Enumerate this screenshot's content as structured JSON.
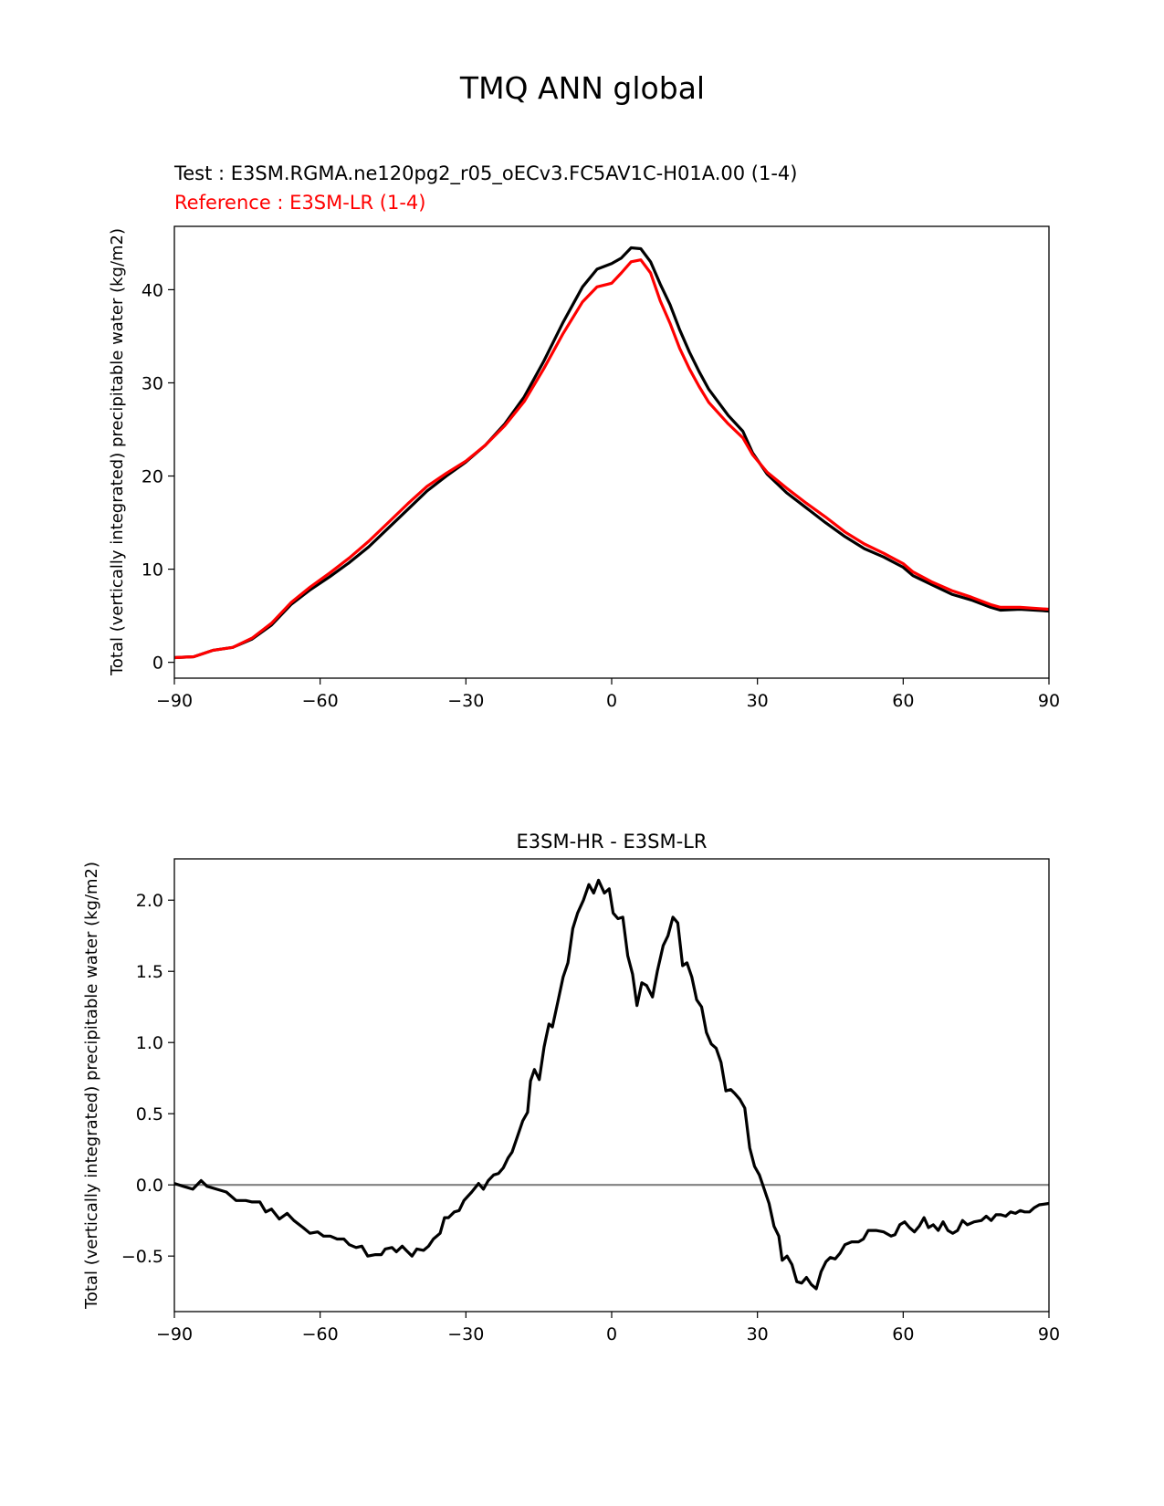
{
  "figure_title": "TMQ ANN global",
  "colors": {
    "test": "#000000",
    "reference": "#ff0000",
    "diff": "#000000",
    "zero_line": "#808080"
  },
  "chart_data": [
    {
      "type": "line",
      "test_label": "Test : E3SM.RGMA.ne120pg2_r05_oECv3.FC5AV1C-H01A.00 (1-4)",
      "reference_label": "Reference : E3SM-LR (1-4)",
      "xlabel": "",
      "ylabel": "Total (vertically integrated) precipitable water (kg/m2)",
      "xlim": [
        -90,
        90
      ],
      "ylim": [
        -1.7,
        46.8
      ],
      "xticks": [
        -90,
        -60,
        -30,
        0,
        30,
        60,
        90
      ],
      "xtick_labels": [
        "−90",
        "−60",
        "−30",
        "0",
        "30",
        "60",
        "90"
      ],
      "yticks": [
        0,
        10,
        20,
        30,
        40
      ],
      "ytick_labels": [
        "0",
        "10",
        "20",
        "30",
        "40"
      ],
      "series": [
        {
          "name": "test",
          "x": [
            -90,
            -86,
            -82,
            -78,
            -74,
            -70,
            -66,
            -62,
            -58,
            -54,
            -50,
            -46,
            -42,
            -38,
            -34,
            -30,
            -26,
            -22,
            -18,
            -14,
            -10,
            -6,
            -3,
            0,
            2,
            4,
            6,
            8,
            10,
            12,
            14,
            16,
            18,
            20,
            24,
            27,
            29,
            32,
            36,
            40,
            44,
            48,
            52,
            56,
            60,
            62,
            66,
            70,
            74,
            78,
            80,
            84,
            90
          ],
          "y": [
            0.5,
            0.6,
            1.3,
            1.6,
            2.5,
            4.0,
            6.2,
            7.8,
            9.2,
            10.7,
            12.4,
            14.4,
            16.4,
            18.4,
            20.0,
            21.5,
            23.3,
            25.6,
            28.5,
            32.3,
            36.5,
            40.3,
            42.2,
            42.8,
            43.4,
            44.5,
            44.4,
            43.0,
            40.6,
            38.4,
            35.7,
            33.3,
            31.2,
            29.3,
            26.5,
            24.8,
            22.5,
            20.2,
            18.2,
            16.6,
            15.0,
            13.5,
            12.2,
            11.3,
            10.2,
            9.3,
            8.3,
            7.3,
            6.7,
            5.9,
            5.6,
            5.7,
            5.5
          ]
        },
        {
          "name": "reference",
          "x": [
            -90,
            -86,
            -82,
            -78,
            -74,
            -70,
            -66,
            -62,
            -58,
            -54,
            -50,
            -46,
            -42,
            -38,
            -34,
            -30,
            -26,
            -22,
            -18,
            -14,
            -10,
            -6,
            -3,
            0,
            2,
            4,
            6,
            8,
            10,
            12,
            14,
            16,
            18,
            20,
            24,
            27,
            29,
            32,
            36,
            40,
            44,
            48,
            52,
            56,
            60,
            62,
            66,
            70,
            74,
            78,
            80,
            84,
            90
          ],
          "y": [
            0.5,
            0.6,
            1.3,
            1.6,
            2.6,
            4.2,
            6.4,
            8.1,
            9.6,
            11.2,
            13.0,
            15.0,
            17.0,
            18.9,
            20.3,
            21.6,
            23.3,
            25.4,
            28.0,
            31.5,
            35.3,
            38.7,
            40.3,
            40.7,
            41.8,
            43.0,
            43.2,
            41.8,
            38.8,
            36.4,
            33.7,
            31.5,
            29.6,
            27.9,
            25.6,
            24.1,
            22.3,
            20.4,
            18.7,
            17.1,
            15.6,
            14.0,
            12.7,
            11.7,
            10.6,
            9.7,
            8.6,
            7.7,
            7.0,
            6.2,
            5.9,
            5.9,
            5.7
          ]
        }
      ]
    },
    {
      "type": "line",
      "title": "E3SM-HR - E3SM-LR",
      "xlabel": "",
      "ylabel": "Total (vertically integrated) precipitable water (kg/m2)",
      "xlim": [
        -90,
        90
      ],
      "ylim": [
        -0.89,
        2.29
      ],
      "xticks": [
        -90,
        -60,
        -30,
        0,
        30,
        60,
        90
      ],
      "xtick_labels": [
        "−90",
        "−60",
        "−30",
        "0",
        "30",
        "60",
        "90"
      ],
      "yticks": [
        -0.5,
        0.0,
        0.5,
        1.0,
        1.5,
        2.0
      ],
      "ytick_labels": [
        "−0.5",
        "0.0",
        "0.5",
        "1.0",
        "1.5",
        "2.0"
      ],
      "zero_line": 0,
      "series": [
        {
          "name": "diff",
          "x": [
            -90,
            -88.2,
            -86.2,
            -84.5,
            -83.3,
            -81.3,
            -79.3,
            -77.3,
            -75.3,
            -74,
            -72.4,
            -71.2,
            -70,
            -68.4,
            -66.8,
            -65.4,
            -63.5,
            -62.1,
            -60.5,
            -59.3,
            -57.9,
            -56.5,
            -55.1,
            -54,
            -52.6,
            -51.4,
            -50.2,
            -48.6,
            -47.4,
            -46.6,
            -45.2,
            -44.3,
            -43.1,
            -42.3,
            -41.1,
            -40.1,
            -38.7,
            -37.7,
            -36.7,
            -35.3,
            -34.4,
            -33.6,
            -32.4,
            -31.4,
            -30.4,
            -28.8,
            -27.4,
            -26.4,
            -25.4,
            -24.3,
            -23.3,
            -22.3,
            -21.3,
            -20.5,
            -19.3,
            -18.3,
            -17.3,
            -16.7,
            -15.9,
            -14.9,
            -13.9,
            -12.9,
            -12.2,
            -11,
            -10,
            -9,
            -8,
            -7,
            -5.8,
            -4.7,
            -3.7,
            -2.7,
            -1.5,
            -0.5,
            0.3,
            1.3,
            2.3,
            3.3,
            4.3,
            5.2,
            6.2,
            7.2,
            8.4,
            9.4,
            10.6,
            11.6,
            12.6,
            13.6,
            14.6,
            15.5,
            16.5,
            17.5,
            18.5,
            19.5,
            20.5,
            21.5,
            22.5,
            23.5,
            24.5,
            25.4,
            26.4,
            27.4,
            28.4,
            29.4,
            30.4,
            31.4,
            32.4,
            33.4,
            34.4,
            35.1,
            36.1,
            37.1,
            38.1,
            39.1,
            40.1,
            41.1,
            42.1,
            43.1,
            44.1,
            45,
            46,
            47,
            48,
            49.4,
            50.8,
            51.8,
            52.8,
            54.4,
            56,
            57.5,
            58.3,
            59.3,
            60.3,
            61.3,
            62.3,
            63.3,
            64.3,
            65.2,
            66.2,
            67.2,
            68.2,
            69.2,
            70.2,
            71.2,
            72.2,
            73.2,
            74.6,
            76.1,
            77.1,
            78.1,
            79.1,
            80.1,
            81.1,
            82.1,
            83.1,
            84.1,
            85,
            86,
            87,
            88,
            90
          ],
          "y": [
            0.01,
            -0.01,
            -0.03,
            0.03,
            -0.01,
            -0.03,
            -0.05,
            -0.11,
            -0.11,
            -0.12,
            -0.12,
            -0.19,
            -0.17,
            -0.24,
            -0.2,
            -0.25,
            -0.3,
            -0.34,
            -0.33,
            -0.36,
            -0.36,
            -0.38,
            -0.38,
            -0.42,
            -0.44,
            -0.43,
            -0.5,
            -0.49,
            -0.49,
            -0.45,
            -0.44,
            -0.47,
            -0.43,
            -0.46,
            -0.5,
            -0.45,
            -0.46,
            -0.43,
            -0.38,
            -0.34,
            -0.23,
            -0.23,
            -0.19,
            -0.18,
            -0.11,
            -0.05,
            0.01,
            -0.03,
            0.03,
            0.07,
            0.08,
            0.12,
            0.19,
            0.23,
            0.35,
            0.45,
            0.51,
            0.73,
            0.81,
            0.74,
            0.97,
            1.13,
            1.11,
            1.3,
            1.46,
            1.56,
            1.8,
            1.91,
            2.0,
            2.11,
            2.05,
            2.14,
            2.05,
            2.08,
            1.91,
            1.87,
            1.88,
            1.61,
            1.48,
            1.26,
            1.42,
            1.4,
            1.32,
            1.5,
            1.68,
            1.75,
            1.88,
            1.84,
            1.54,
            1.56,
            1.46,
            1.3,
            1.25,
            1.07,
            0.99,
            0.96,
            0.86,
            0.66,
            0.67,
            0.64,
            0.6,
            0.54,
            0.26,
            0.13,
            0.07,
            -0.03,
            -0.13,
            -0.29,
            -0.36,
            -0.53,
            -0.5,
            -0.56,
            -0.68,
            -0.69,
            -0.65,
            -0.7,
            -0.73,
            -0.61,
            -0.54,
            -0.51,
            -0.52,
            -0.48,
            -0.42,
            -0.4,
            -0.4,
            -0.38,
            -0.32,
            -0.32,
            -0.33,
            -0.36,
            -0.35,
            -0.28,
            -0.26,
            -0.3,
            -0.33,
            -0.29,
            -0.23,
            -0.3,
            -0.28,
            -0.32,
            -0.26,
            -0.32,
            -0.34,
            -0.32,
            -0.25,
            -0.28,
            -0.26,
            -0.25,
            -0.22,
            -0.25,
            -0.21,
            -0.21,
            -0.22,
            -0.19,
            -0.2,
            -0.18,
            -0.19,
            -0.19,
            -0.16,
            -0.14,
            -0.13
          ]
        }
      ]
    }
  ]
}
